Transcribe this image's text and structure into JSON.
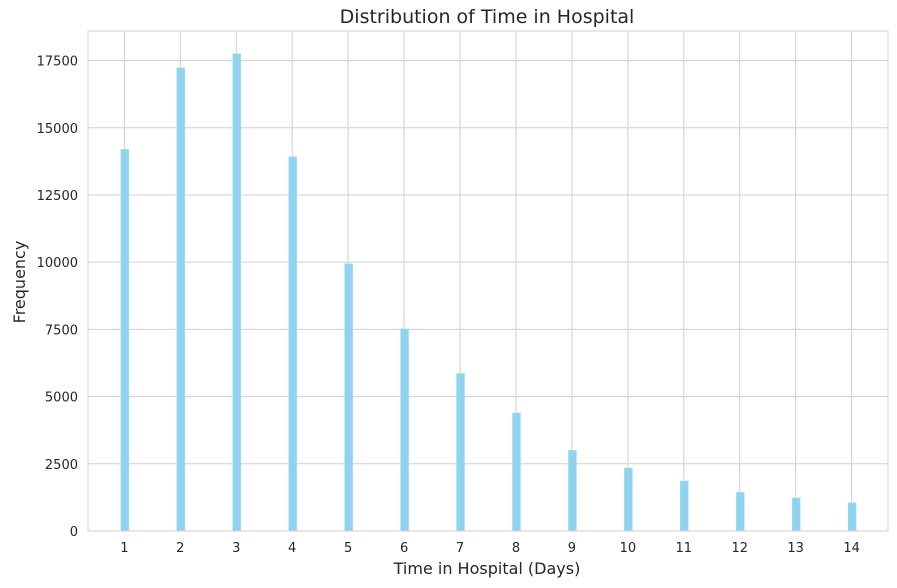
{
  "chart_data": {
    "type": "bar",
    "title": "Distribution of Time in Hospital",
    "xlabel": "Time in Hospital (Days)",
    "ylabel": "Frequency",
    "categories": [
      1,
      2,
      3,
      4,
      5,
      6,
      7,
      8,
      9,
      10,
      11,
      12,
      13,
      14
    ],
    "values": [
      14200,
      17230,
      17750,
      13920,
      9940,
      7520,
      5860,
      4390,
      3000,
      2340,
      1860,
      1440,
      1230,
      1050
    ],
    "xlim": [
      0.35,
      14.65
    ],
    "ylim": [
      0,
      18600
    ],
    "yticks": [
      0,
      2500,
      5000,
      7500,
      10000,
      12500,
      15000,
      17500
    ],
    "grid": true,
    "bar_color": "#8fd3ee",
    "bar_edge_color": "#a9dff3"
  }
}
